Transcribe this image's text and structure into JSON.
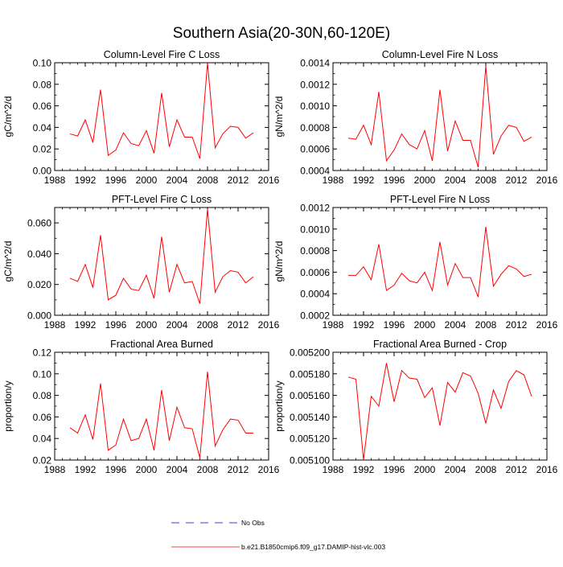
{
  "title": "Southern Asia(20-30N,60-120E)",
  "colors": {
    "series": "#ff0000",
    "no_obs": "#0000cc",
    "axis": "#000000"
  },
  "legend": {
    "no_obs_label": "No Obs",
    "series_label": "b.e21.B1850cmip6.f09_g17.DAMIP-hist-vlc.003"
  },
  "chart_data": [
    {
      "type": "line",
      "title": "Column-Level Fire C Loss",
      "ylabel": "gC/m^2/d",
      "xlabel": "",
      "xlim": [
        1988,
        2016
      ],
      "xticks": [
        "1988",
        "1992",
        "1996",
        "2000",
        "2004",
        "2008",
        "2012",
        "2016"
      ],
      "ylim": [
        0,
        0.1
      ],
      "yticks": [
        "0.00",
        "0.02",
        "0.04",
        "0.06",
        "0.08",
        "0.10"
      ],
      "x": [
        1990,
        1991,
        1992,
        1993,
        1994,
        1995,
        1996,
        1997,
        1998,
        1999,
        2000,
        2001,
        2002,
        2003,
        2004,
        2005,
        2006,
        2007,
        2008,
        2009,
        2010,
        2011,
        2012,
        2013,
        2014
      ],
      "series": [
        {
          "name": "b.e21.B1850cmip6.f09_g17.DAMIP-hist-vlc.003",
          "values": [
            0.034,
            0.032,
            0.047,
            0.026,
            0.075,
            0.014,
            0.019,
            0.035,
            0.025,
            0.023,
            0.037,
            0.016,
            0.072,
            0.022,
            0.047,
            0.031,
            0.031,
            0.011,
            0.1,
            0.021,
            0.034,
            0.041,
            0.04,
            0.03,
            0.035
          ]
        }
      ]
    },
    {
      "type": "line",
      "title": "Column-Level Fire N Loss",
      "ylabel": "gN/m^2/d",
      "xlabel": "",
      "xlim": [
        1988,
        2016
      ],
      "xticks": [
        "1988",
        "1992",
        "1996",
        "2000",
        "2004",
        "2008",
        "2012",
        "2016"
      ],
      "ylim": [
        0.0004,
        0.0014
      ],
      "yticks": [
        "0.0004",
        "0.0006",
        "0.0008",
        "0.0010",
        "0.0012",
        "0.0014"
      ],
      "x": [
        1990,
        1991,
        1992,
        1993,
        1994,
        1995,
        1996,
        1997,
        1998,
        1999,
        2000,
        2001,
        2002,
        2003,
        2004,
        2005,
        2006,
        2007,
        2008,
        2009,
        2010,
        2011,
        2012,
        2013,
        2014
      ],
      "series": [
        {
          "name": "b.e21.B1850cmip6.f09_g17.DAMIP-hist-vlc.003",
          "values": [
            0.0007,
            0.00069,
            0.00082,
            0.00064,
            0.00113,
            0.00049,
            0.00059,
            0.00074,
            0.00064,
            0.0006,
            0.00077,
            0.00049,
            0.00115,
            0.00058,
            0.00086,
            0.00068,
            0.00068,
            0.00043,
            0.00137,
            0.00055,
            0.00072,
            0.00082,
            0.0008,
            0.00067,
            0.00071
          ]
        }
      ]
    },
    {
      "type": "line",
      "title": "PFT-Level Fire C Loss",
      "ylabel": "gC/m^2/d",
      "xlabel": "",
      "xlim": [
        1988,
        2016
      ],
      "xticks": [
        "1988",
        "1992",
        "1996",
        "2000",
        "2004",
        "2008",
        "2012",
        "2016"
      ],
      "ylim": [
        0,
        0.07
      ],
      "yticks": [
        "0.000",
        "0.020",
        "0.040",
        "0.060"
      ],
      "ytick_values": [
        0,
        0.02,
        0.04,
        0.06
      ],
      "x": [
        1990,
        1991,
        1992,
        1993,
        1994,
        1995,
        1996,
        1997,
        1998,
        1999,
        2000,
        2001,
        2002,
        2003,
        2004,
        2005,
        2006,
        2007,
        2008,
        2009,
        2010,
        2011,
        2012,
        2013,
        2014
      ],
      "series": [
        {
          "name": "b.e21.B1850cmip6.f09_g17.DAMIP-hist-vlc.003",
          "values": [
            0.024,
            0.022,
            0.033,
            0.018,
            0.052,
            0.01,
            0.013,
            0.024,
            0.017,
            0.016,
            0.026,
            0.011,
            0.051,
            0.015,
            0.033,
            0.021,
            0.022,
            0.0075,
            0.069,
            0.015,
            0.025,
            0.029,
            0.028,
            0.021,
            0.025
          ]
        }
      ]
    },
    {
      "type": "line",
      "title": "PFT-Level Fire N Loss",
      "ylabel": "gN/m^2/d",
      "xlabel": "",
      "xlim": [
        1988,
        2016
      ],
      "xticks": [
        "1988",
        "1992",
        "1996",
        "2000",
        "2004",
        "2008",
        "2012",
        "2016"
      ],
      "ylim": [
        0.0002,
        0.0012
      ],
      "yticks": [
        "0.0002",
        "0.0004",
        "0.0006",
        "0.0008",
        "0.0010",
        "0.0012"
      ],
      "x": [
        1990,
        1991,
        1992,
        1993,
        1994,
        1995,
        1996,
        1997,
        1998,
        1999,
        2000,
        2001,
        2002,
        2003,
        2004,
        2005,
        2006,
        2007,
        2008,
        2009,
        2010,
        2011,
        2012,
        2013,
        2014
      ],
      "series": [
        {
          "name": "b.e21.B1850cmip6.f09_g17.DAMIP-hist-vlc.003",
          "values": [
            0.00057,
            0.00057,
            0.00065,
            0.00053,
            0.00086,
            0.00043,
            0.00048,
            0.00059,
            0.00052,
            0.0005,
            0.0006,
            0.00043,
            0.00088,
            0.00048,
            0.00068,
            0.00055,
            0.00055,
            0.00037,
            0.00102,
            0.00047,
            0.00058,
            0.00066,
            0.00063,
            0.00056,
            0.00058
          ]
        }
      ]
    },
    {
      "type": "line",
      "title": "Fractional Area Burned",
      "ylabel": "proportion/y",
      "xlabel": "",
      "xlim": [
        1988,
        2016
      ],
      "xticks": [
        "1988",
        "1992",
        "1996",
        "2000",
        "2004",
        "2008",
        "2012",
        "2016"
      ],
      "ylim": [
        0.02,
        0.12
      ],
      "yticks": [
        "0.02",
        "0.04",
        "0.06",
        "0.08",
        "0.10",
        "0.12"
      ],
      "x": [
        1990,
        1991,
        1992,
        1993,
        1994,
        1995,
        1996,
        1997,
        1998,
        1999,
        2000,
        2001,
        2002,
        2003,
        2004,
        2005,
        2006,
        2007,
        2008,
        2009,
        2010,
        2011,
        2012,
        2013,
        2014
      ],
      "series": [
        {
          "name": "b.e21.B1850cmip6.f09_g17.DAMIP-hist-vlc.003",
          "values": [
            0.05,
            0.045,
            0.062,
            0.039,
            0.091,
            0.029,
            0.034,
            0.058,
            0.038,
            0.04,
            0.058,
            0.029,
            0.085,
            0.038,
            0.069,
            0.05,
            0.049,
            0.022,
            0.102,
            0.033,
            0.048,
            0.058,
            0.057,
            0.045,
            0.045
          ]
        }
      ]
    },
    {
      "type": "line",
      "title": "Fractional Area Burned - Crop",
      "ylabel": "proportion/y",
      "xlabel": "",
      "xlim": [
        1988,
        2016
      ],
      "xticks": [
        "1988",
        "1992",
        "1996",
        "2000",
        "2004",
        "2008",
        "2012",
        "2016"
      ],
      "ylim": [
        0.0051,
        0.0052
      ],
      "yticks": [
        "0.005100",
        "0.005120",
        "0.005140",
        "0.005160",
        "0.005180",
        "0.005200"
      ],
      "x": [
        1990,
        1991,
        1992,
        1993,
        1994,
        1995,
        1996,
        1997,
        1998,
        1999,
        2000,
        2001,
        2002,
        2003,
        2004,
        2005,
        2006,
        2007,
        2008,
        2009,
        2010,
        2011,
        2012,
        2013,
        2014
      ],
      "series": [
        {
          "name": "b.e21.B1850cmip6.f09_g17.DAMIP-hist-vlc.003",
          "values": [
            0.005177,
            0.005175,
            0.0051,
            0.005159,
            0.00515,
            0.00519,
            0.005154,
            0.005183,
            0.005176,
            0.005175,
            0.005158,
            0.005167,
            0.005132,
            0.005172,
            0.005163,
            0.005181,
            0.005178,
            0.005162,
            0.005134,
            0.005165,
            0.005148,
            0.005173,
            0.005183,
            0.005179,
            0.005159
          ]
        }
      ]
    }
  ]
}
